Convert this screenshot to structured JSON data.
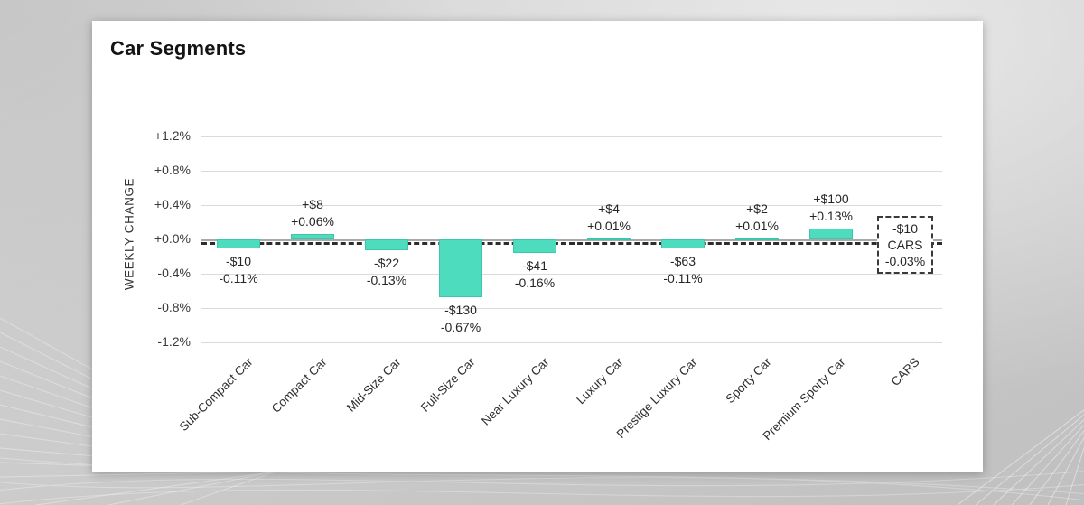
{
  "title": "Car Segments",
  "chart_data": {
    "type": "bar",
    "title": "Car Segments",
    "ylabel": "WEEKLY CHANGE",
    "xlabel": "",
    "y_ticks": [
      "+1.2%",
      "+0.8%",
      "+0.4%",
      "+0.0%",
      "-0.4%",
      "-0.8%",
      "-1.2%"
    ],
    "y_tick_values": [
      1.2,
      0.8,
      0.4,
      0.0,
      -0.4,
      -0.8,
      -1.2
    ],
    "ylim": [
      -1.2,
      1.2
    ],
    "grid": true,
    "legend_position": "none",
    "bar_color": "#4edcbe",
    "segments": [
      {
        "name": "Sub-Compact Car",
        "dollar_change": "-$10",
        "pct_change": "-0.11%",
        "value_pct": -0.11
      },
      {
        "name": "Compact Car",
        "dollar_change": "+$8",
        "pct_change": "+0.06%",
        "value_pct": 0.06
      },
      {
        "name": "Mid-Size Car",
        "dollar_change": "-$22",
        "pct_change": "-0.13%",
        "value_pct": -0.13
      },
      {
        "name": "Full-Size Car",
        "dollar_change": "-$130",
        "pct_change": "-0.67%",
        "value_pct": -0.67
      },
      {
        "name": "Near Luxury Car",
        "dollar_change": "-$41",
        "pct_change": "-0.16%",
        "value_pct": -0.16
      },
      {
        "name": "Luxury Car",
        "dollar_change": "+$4",
        "pct_change": "+0.01%",
        "value_pct": 0.01
      },
      {
        "name": "Prestige Luxury Car",
        "dollar_change": "-$63",
        "pct_change": "-0.11%",
        "value_pct": -0.11
      },
      {
        "name": "Sporty Car",
        "dollar_change": "+$2",
        "pct_change": "+0.01%",
        "value_pct": 0.01
      },
      {
        "name": "Premium Sporty Car",
        "dollar_change": "+$100",
        "pct_change": "+0.13%",
        "value_pct": 0.13
      },
      {
        "name": "CARS",
        "dollar_change": "-$10",
        "pct_change": "-0.03%",
        "value_pct": -0.03,
        "summary_box": true
      }
    ],
    "average_line": {
      "label": "CARS",
      "value_pct": -0.03,
      "style": "dashed"
    }
  }
}
